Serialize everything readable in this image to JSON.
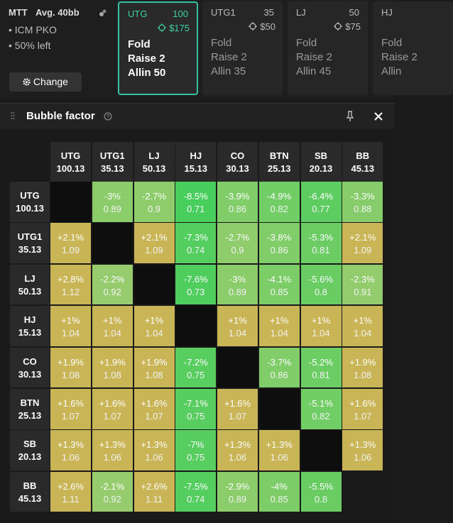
{
  "sidebar": {
    "format": "MTT",
    "average": "Avg. 40bb",
    "tags": [
      "ICM PKO",
      "50% left"
    ],
    "button": "Change"
  },
  "positions": [
    {
      "name": "UTG",
      "stack": "100",
      "bounty": "$175",
      "actions": [
        "Fold",
        "Raise 2",
        "Allin 50"
      ],
      "active": true
    },
    {
      "name": "UTG1",
      "stack": "35",
      "bounty": "$50",
      "actions": [
        "Fold",
        "Raise 2",
        "Allin 35"
      ],
      "active": false
    },
    {
      "name": "LJ",
      "stack": "50",
      "bounty": "$75",
      "actions": [
        "Fold",
        "Raise 2",
        "Allin 45"
      ],
      "active": false
    },
    {
      "name": "HJ",
      "actions": [
        "Fold",
        "Raise 2",
        "Allin"
      ],
      "active": false
    }
  ],
  "panel": {
    "title": "Bubble factor",
    "columns": [
      {
        "name": "UTG",
        "stack": "100.13"
      },
      {
        "name": "UTG1",
        "stack": "35.13"
      },
      {
        "name": "LJ",
        "stack": "50.13"
      },
      {
        "name": "HJ",
        "stack": "15.13"
      },
      {
        "name": "CO",
        "stack": "30.13"
      },
      {
        "name": "BTN",
        "stack": "25.13"
      },
      {
        "name": "SB",
        "stack": "20.13"
      },
      {
        "name": "BB",
        "stack": "45.13"
      }
    ],
    "rows": [
      {
        "name": "UTG",
        "stack": "100.13",
        "cells": [
          null,
          {
            "change": "-3%",
            "factor": 0.89
          },
          {
            "change": "-2.7%",
            "factor": 0.9
          },
          {
            "change": "-8.5%",
            "factor": 0.71
          },
          {
            "change": "-3.9%",
            "factor": 0.86
          },
          {
            "change": "-4.9%",
            "factor": 0.82
          },
          {
            "change": "-6.4%",
            "factor": 0.77
          },
          {
            "change": "-3.3%",
            "factor": 0.88
          }
        ]
      },
      {
        "name": "UTG1",
        "stack": "35.13",
        "cells": [
          {
            "change": "+2.1%",
            "factor": 1.09
          },
          null,
          {
            "change": "+2.1%",
            "factor": 1.09
          },
          {
            "change": "-7.3%",
            "factor": 0.74
          },
          {
            "change": "-2.7%",
            "factor": 0.9
          },
          {
            "change": "-3.8%",
            "factor": 0.86
          },
          {
            "change": "-5.3%",
            "factor": 0.81
          },
          {
            "change": "+2.1%",
            "factor": 1.09
          }
        ]
      },
      {
        "name": "LJ",
        "stack": "50.13",
        "cells": [
          {
            "change": "+2.8%",
            "factor": 1.12
          },
          {
            "change": "-2.2%",
            "factor": 0.92
          },
          null,
          {
            "change": "-7.6%",
            "factor": 0.73
          },
          {
            "change": "-3%",
            "factor": 0.89
          },
          {
            "change": "-4.1%",
            "factor": 0.85
          },
          {
            "change": "-5.6%",
            "factor": 0.8
          },
          {
            "change": "-2.3%",
            "factor": 0.91
          }
        ]
      },
      {
        "name": "HJ",
        "stack": "15.13",
        "cells": [
          {
            "change": "+1%",
            "factor": 1.04
          },
          {
            "change": "+1%",
            "factor": 1.04
          },
          {
            "change": "+1%",
            "factor": 1.04
          },
          null,
          {
            "change": "+1%",
            "factor": 1.04
          },
          {
            "change": "+1%",
            "factor": 1.04
          },
          {
            "change": "+1%",
            "factor": 1.04
          },
          {
            "change": "+1%",
            "factor": 1.04
          }
        ]
      },
      {
        "name": "CO",
        "stack": "30.13",
        "cells": [
          {
            "change": "+1.9%",
            "factor": 1.08
          },
          {
            "change": "+1.9%",
            "factor": 1.08
          },
          {
            "change": "+1.9%",
            "factor": 1.08
          },
          {
            "change": "-7.2%",
            "factor": 0.75
          },
          null,
          {
            "change": "-3.7%",
            "factor": 0.86
          },
          {
            "change": "-5.2%",
            "factor": 0.81
          },
          {
            "change": "+1.9%",
            "factor": 1.08
          }
        ]
      },
      {
        "name": "BTN",
        "stack": "25.13",
        "cells": [
          {
            "change": "+1.6%",
            "factor": 1.07
          },
          {
            "change": "+1.6%",
            "factor": 1.07
          },
          {
            "change": "+1.6%",
            "factor": 1.07
          },
          {
            "change": "-7.1%",
            "factor": 0.75
          },
          {
            "change": "+1.6%",
            "factor": 1.07
          },
          null,
          {
            "change": "-5.1%",
            "factor": 0.82
          },
          {
            "change": "+1.6%",
            "factor": 1.07
          }
        ]
      },
      {
        "name": "SB",
        "stack": "20.13",
        "cells": [
          {
            "change": "+1.3%",
            "factor": 1.06
          },
          {
            "change": "+1.3%",
            "factor": 1.06
          },
          {
            "change": "+1.3%",
            "factor": 1.06
          },
          {
            "change": "-7%",
            "factor": 0.75
          },
          {
            "change": "+1.3%",
            "factor": 1.06
          },
          {
            "change": "+1.3%",
            "factor": 1.06
          },
          null,
          {
            "change": "+1.3%",
            "factor": 1.06
          }
        ]
      },
      {
        "name": "BB",
        "stack": "45.13",
        "cells": [
          {
            "change": "+2.6%",
            "factor": 1.11
          },
          {
            "change": "-2.1%",
            "factor": 0.92
          },
          {
            "change": "+2.6%",
            "factor": 1.11
          },
          {
            "change": "-7.5%",
            "factor": 0.74
          },
          {
            "change": "-2.9%",
            "factor": 0.89
          },
          {
            "change": "-4%",
            "factor": 0.85
          },
          {
            "change": "-5.5%",
            "factor": 0.8
          },
          null
        ]
      }
    ]
  }
}
